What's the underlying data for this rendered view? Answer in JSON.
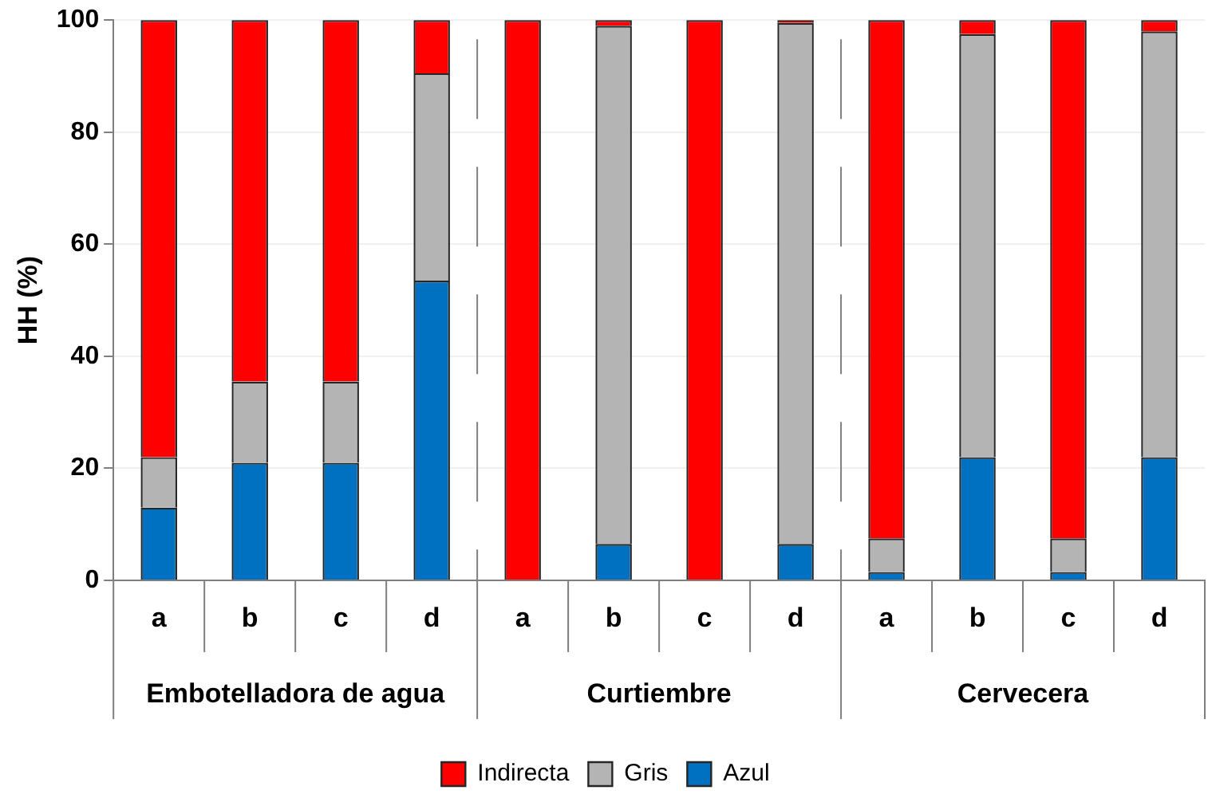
{
  "chart_data": {
    "type": "bar",
    "stacked": true,
    "ylabel": "HH (%)",
    "categories": [
      "a",
      "b",
      "c",
      "d",
      "a",
      "b",
      "c",
      "d",
      "a",
      "b",
      "c",
      "d"
    ],
    "series": [
      {
        "name": "Azul",
        "color": "#0070c0",
        "values": [
          13,
          21,
          21,
          53.5,
          0,
          6.5,
          0,
          6.5,
          1.5,
          22,
          1.5,
          22
        ]
      },
      {
        "name": "Gris",
        "color": "#b4b4b4",
        "values": [
          9,
          14.5,
          14.5,
          37,
          0,
          92.5,
          0,
          93,
          6,
          75.5,
          6,
          76
        ]
      },
      {
        "name": "Indirecta",
        "color": "#ff0000",
        "values": [
          78,
          64.5,
          64.5,
          9.5,
          100,
          1,
          100,
          0.5,
          92.5,
          2.5,
          92.5,
          2
        ]
      }
    ],
    "ylim": [
      0,
      100
    ],
    "yticks": [
      0,
      20,
      40,
      60,
      80,
      100
    ],
    "grid": "y",
    "legend": "bottom",
    "annotations": [
      "Embotelladora de agua",
      "Curtiembre",
      "Cervecera"
    ]
  }
}
